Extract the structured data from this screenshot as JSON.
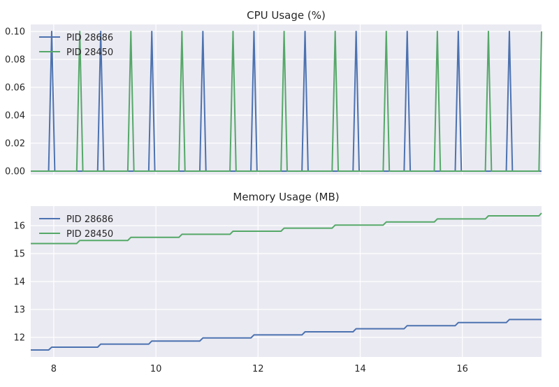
{
  "chart_data": [
    {
      "type": "line",
      "title": "CPU Usage (%)",
      "xlabel": "",
      "ylabel": "",
      "xlim": [
        7.55,
        17.55
      ],
      "ylim": [
        -0.0025,
        0.105
      ],
      "yticks": [
        0.0,
        0.02,
        0.04,
        0.06,
        0.08,
        0.1
      ],
      "ytick_labels": [
        "0.00",
        "0.02",
        "0.04",
        "0.06",
        "0.08",
        "0.10"
      ],
      "legend": "top-left",
      "grid": true,
      "series": [
        {
          "name": "PID 28686",
          "color": "#4c72b0",
          "x": [
            7.55,
            7.9,
            7.96,
            8.02,
            8.86,
            8.92,
            8.98,
            9.86,
            9.92,
            9.98,
            10.86,
            10.92,
            10.98,
            11.86,
            11.92,
            11.98,
            12.86,
            12.92,
            12.98,
            13.86,
            13.92,
            13.98,
            14.86,
            14.92,
            14.98,
            15.86,
            15.92,
            15.98,
            16.86,
            16.92,
            16.98,
            17.55
          ],
          "y": [
            0,
            0,
            0.1,
            0,
            0,
            0.1,
            0,
            0,
            0.1,
            0,
            0,
            0.1,
            0,
            0,
            0.1,
            0,
            0,
            0.1,
            0,
            0,
            0.1,
            0,
            0,
            0.1,
            0,
            0,
            0.1,
            0,
            0,
            0.1,
            0,
            0
          ]
        },
        {
          "name": "PID 28450",
          "color": "#55a868",
          "x": [
            7.55,
            8.45,
            8.51,
            8.57,
            9.45,
            9.51,
            9.57,
            10.45,
            10.51,
            10.57,
            11.45,
            11.51,
            11.57,
            12.45,
            12.51,
            12.57,
            13.45,
            13.51,
            13.57,
            14.45,
            14.51,
            14.57,
            15.45,
            15.51,
            15.57,
            16.45,
            16.51,
            16.57,
            17.5,
            17.55
          ],
          "y": [
            0,
            0,
            0.1,
            0,
            0,
            0.1,
            0,
            0,
            0.1,
            0,
            0,
            0.1,
            0,
            0,
            0.1,
            0,
            0,
            0.1,
            0,
            0,
            0.1,
            0,
            0,
            0.1,
            0,
            0,
            0.1,
            0,
            0,
            0.1
          ]
        }
      ]
    },
    {
      "type": "line",
      "title": "Memory Usage (MB)",
      "xlabel": "",
      "ylabel": "",
      "xlim": [
        7.55,
        17.55
      ],
      "ylim": [
        11.3,
        16.7
      ],
      "xticks": [
        8,
        10,
        12,
        14,
        16
      ],
      "xtick_labels": [
        "8",
        "10",
        "12",
        "14",
        "16"
      ],
      "yticks": [
        12,
        13,
        14,
        15,
        16
      ],
      "ytick_labels": [
        "12",
        "13",
        "14",
        "15",
        "16"
      ],
      "legend": "top-left",
      "grid": true,
      "series": [
        {
          "name": "PID 28686",
          "color": "#4c72b0",
          "x": [
            7.55,
            7.9,
            7.96,
            8.86,
            8.92,
            9.86,
            9.92,
            10.86,
            10.92,
            11.86,
            11.92,
            12.86,
            12.92,
            13.86,
            13.92,
            14.86,
            14.92,
            15.86,
            15.92,
            16.86,
            16.92,
            17.55
          ],
          "y": [
            11.55,
            11.55,
            11.65,
            11.65,
            11.76,
            11.76,
            11.87,
            11.87,
            11.98,
            11.98,
            12.09,
            12.09,
            12.2,
            12.2,
            12.31,
            12.31,
            12.42,
            12.42,
            12.53,
            12.53,
            12.64,
            12.64
          ]
        },
        {
          "name": "PID 28450",
          "color": "#55a868",
          "x": [
            7.55,
            8.45,
            8.51,
            9.45,
            9.51,
            10.45,
            10.51,
            11.45,
            11.51,
            12.45,
            12.51,
            13.45,
            13.51,
            14.45,
            14.51,
            15.45,
            15.51,
            16.45,
            16.51,
            17.5,
            17.55
          ],
          "y": [
            15.36,
            15.36,
            15.47,
            15.47,
            15.58,
            15.58,
            15.69,
            15.69,
            15.8,
            15.8,
            15.91,
            15.91,
            16.02,
            16.02,
            16.13,
            16.13,
            16.24,
            16.24,
            16.35,
            16.35,
            16.45
          ]
        }
      ]
    }
  ]
}
